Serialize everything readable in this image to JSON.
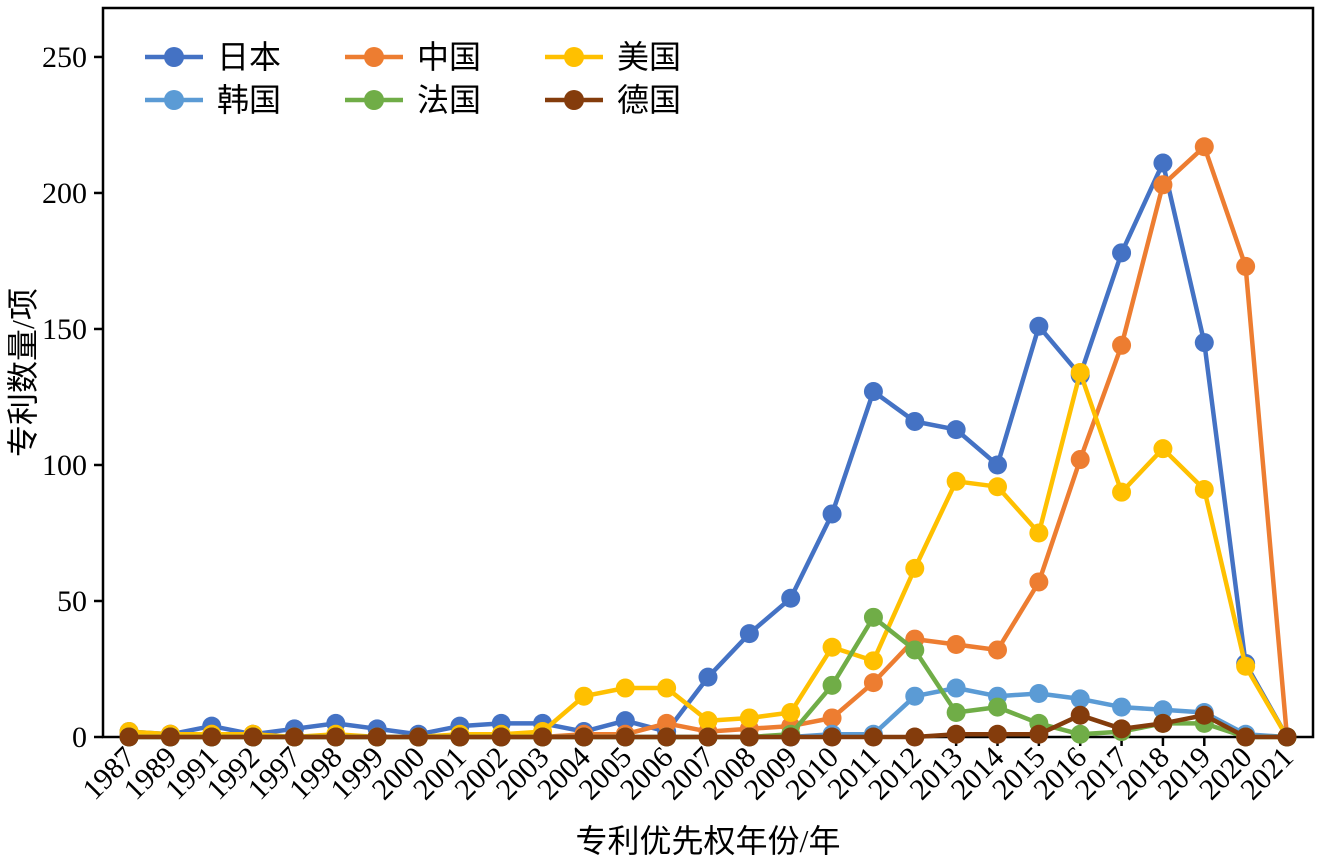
{
  "chart_data": {
    "type": "line",
    "title": "",
    "xlabel": "专利优先权年份/年",
    "ylabel": "专利数量/项",
    "ylim": [
      0,
      268
    ],
    "yticks": [
      0,
      50,
      100,
      150,
      200,
      250
    ],
    "grid": false,
    "legend_position": "top-left-inside",
    "frame_color": "#000000",
    "categories": [
      "1987",
      "1989",
      "1991",
      "1992",
      "1997",
      "1998",
      "1999",
      "2000",
      "2001",
      "2002",
      "2003",
      "2004",
      "2005",
      "2006",
      "2007",
      "2008",
      "2009",
      "2010",
      "2011",
      "2012",
      "2013",
      "2014",
      "2015",
      "2016",
      "2017",
      "2018",
      "2019",
      "2020",
      "2021"
    ],
    "series": [
      {
        "id": "japan",
        "name": "日本",
        "color": "#4472C4",
        "values": [
          2,
          1,
          4,
          1,
          3,
          5,
          3,
          1,
          4,
          5,
          5,
          2,
          6,
          2,
          22,
          38,
          51,
          82,
          127,
          116,
          113,
          100,
          151,
          133,
          178,
          211,
          145,
          27,
          0
        ]
      },
      {
        "id": "china",
        "name": "中国",
        "color": "#ED7D31",
        "values": [
          1,
          1,
          1,
          1,
          0,
          0,
          0,
          0,
          0,
          0,
          0,
          1,
          1,
          5,
          2,
          3,
          4,
          7,
          20,
          36,
          34,
          32,
          57,
          102,
          144,
          203,
          217,
          173,
          0
        ]
      },
      {
        "id": "usa",
        "name": "美国",
        "color": "#FFC000",
        "values": [
          2,
          1,
          1,
          1,
          0,
          1,
          0,
          0,
          1,
          1,
          2,
          15,
          18,
          18,
          6,
          7,
          9,
          33,
          28,
          62,
          94,
          92,
          75,
          134,
          90,
          106,
          91,
          26,
          0
        ]
      },
      {
        "id": "korea",
        "name": "韩国",
        "color": "#5B9BD5",
        "values": [
          0,
          0,
          0,
          0,
          0,
          0,
          0,
          0,
          0,
          0,
          0,
          0,
          0,
          0,
          0,
          0,
          0,
          1,
          1,
          15,
          18,
          15,
          16,
          14,
          11,
          10,
          9,
          1,
          0
        ]
      },
      {
        "id": "france",
        "name": "法国",
        "color": "#70AD47",
        "values": [
          0,
          0,
          0,
          0,
          0,
          0,
          0,
          0,
          0,
          0,
          0,
          0,
          0,
          0,
          0,
          0,
          1,
          19,
          44,
          32,
          9,
          11,
          5,
          1,
          2,
          5,
          5,
          0,
          0
        ]
      },
      {
        "id": "germany",
        "name": "德国",
        "color": "#843C0C",
        "values": [
          0,
          0,
          0,
          0,
          0,
          0,
          0,
          0,
          0,
          0,
          0,
          0,
          0,
          0,
          0,
          0,
          0,
          0,
          0,
          0,
          1,
          1,
          1,
          8,
          3,
          5,
          8,
          0,
          0
        ]
      }
    ]
  }
}
